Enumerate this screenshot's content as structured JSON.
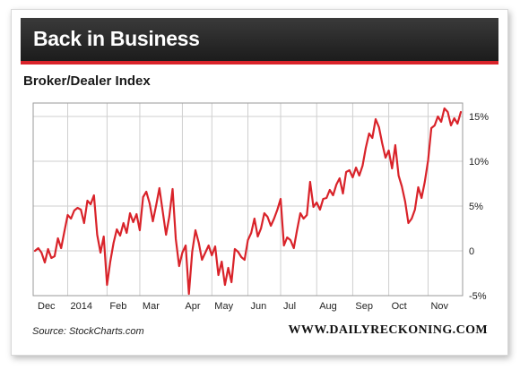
{
  "banner": {
    "title": "Back in Business"
  },
  "footer": {
    "source": "Source: StockCharts.com",
    "brand": "WWW.DAILYRECKONING.COM"
  },
  "colors": {
    "line": "#d9232a",
    "banner": "#2a2a2a",
    "accent": "#d9232a",
    "grid": "#cfcfcf"
  },
  "chart_data": {
    "type": "line",
    "title": "Broker/Dealer Index",
    "xlabel": "",
    "ylabel": "",
    "ylim": [
      -5,
      16.5
    ],
    "y_ticks": [
      15,
      10,
      5,
      0,
      -5
    ],
    "y_tick_labels": [
      "15%",
      "10%",
      "5%",
      "0",
      "-5%"
    ],
    "grid": true,
    "x_ticks": [
      {
        "pos": 0,
        "label": "Dec"
      },
      {
        "pos": 10,
        "label": "2014"
      },
      {
        "pos": 22,
        "label": "Feb"
      },
      {
        "pos": 32,
        "label": "Mar"
      },
      {
        "pos": 45,
        "label": "Apr"
      },
      {
        "pos": 54,
        "label": "May"
      },
      {
        "pos": 65,
        "label": "Jun"
      },
      {
        "pos": 75,
        "label": "Jul"
      },
      {
        "pos": 86,
        "label": "Aug"
      },
      {
        "pos": 97,
        "label": "Sep"
      },
      {
        "pos": 108,
        "label": "Oct"
      },
      {
        "pos": 120,
        "label": "Nov"
      }
    ],
    "series": [
      {
        "values": [
          0,
          0.3,
          -0.2,
          -1.3,
          0.2,
          -0.8,
          -0.6,
          1.4,
          0.3,
          2.2,
          4.0,
          3.6,
          4.5,
          4.8,
          4.6,
          3.1,
          5.6,
          5.2,
          6.2,
          1.8,
          -0.2,
          1.6,
          -3.8,
          -1.2,
          0.9,
          2.4,
          1.7,
          3.1,
          2.0,
          4.2,
          3.2,
          4.1,
          2.3,
          6.0,
          6.6,
          5.3,
          3.3,
          5.1,
          7.0,
          4.4,
          1.8,
          3.8,
          6.9,
          1.3,
          -1.7,
          -0.2,
          0.6,
          -4.8,
          -0.1,
          2.3,
          0.9,
          -1.0,
          -0.2,
          0.6,
          -0.5,
          0.5,
          -2.7,
          -1.2,
          -3.8,
          -1.9,
          -3.5,
          0.2,
          -0.1,
          -0.7,
          -1.0,
          1.2,
          2.0,
          3.6,
          1.6,
          2.5,
          4.2,
          3.8,
          2.8,
          3.6,
          4.6,
          5.8,
          0.6,
          1.5,
          1.2,
          0.3,
          2.3,
          4.2,
          3.6,
          4.0,
          7.7,
          4.9,
          5.4,
          4.6,
          5.8,
          5.9,
          6.8,
          6.2,
          7.4,
          8.1,
          6.4,
          8.8,
          9.0,
          8.2,
          9.3,
          8.4,
          9.5,
          11.5,
          13.1,
          12.6,
          14.7,
          13.8,
          12.0,
          10.4,
          11.2,
          9.2,
          11.8,
          8.4,
          7.2,
          5.5,
          3.1,
          3.6,
          4.6,
          7.1,
          5.9,
          7.7,
          10.1,
          13.7,
          14.0,
          15.0,
          14.4,
          15.9,
          15.5,
          14.0,
          14.8,
          14.2,
          15.5
        ]
      }
    ]
  }
}
